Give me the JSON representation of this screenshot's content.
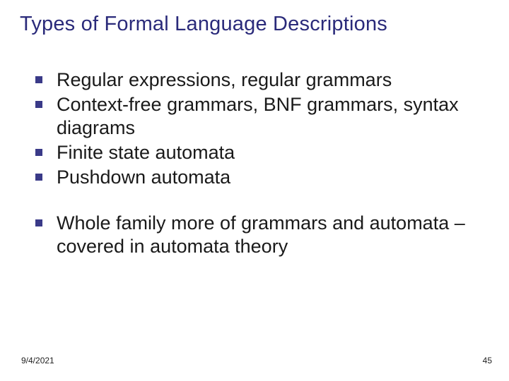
{
  "title": "Types of Formal Language Descriptions",
  "bullets_group1": [
    "Regular expressions, regular grammars",
    "Context-free grammars, BNF grammars, syntax  diagrams",
    "Finite state automata",
    "Pushdown automata"
  ],
  "bullets_group2": [
    "Whole family more of grammars and automata – covered in automata theory"
  ],
  "footer": {
    "date": "9/4/2021",
    "page": "45"
  },
  "colors": {
    "title": "#2a2a7a",
    "bullet_square": "#3a3a88",
    "body_text": "#1a1a1a",
    "background": "#ffffff"
  },
  "typography": {
    "title_fontsize": 29,
    "body_fontsize": 27,
    "footer_fontsize": 12,
    "font_family": "Arial"
  }
}
